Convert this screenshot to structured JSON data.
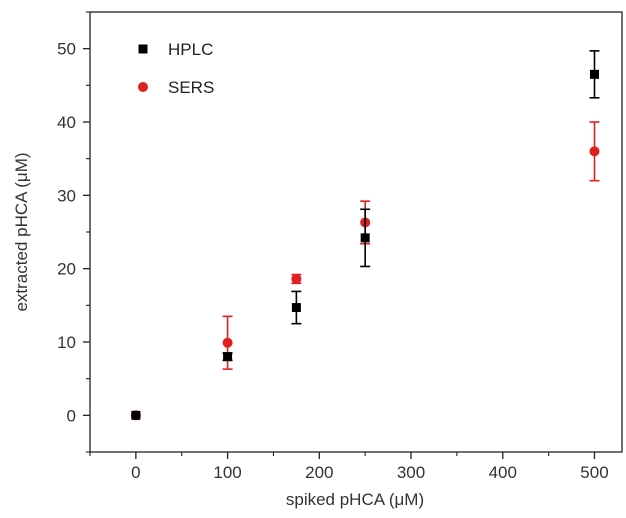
{
  "chart_data": {
    "type": "scatter",
    "xlabel": "spiked pHCA (μM)",
    "ylabel": "extracted pHCA (μM)",
    "xlim": [
      -50,
      530
    ],
    "ylim": [
      -5,
      55
    ],
    "xticks": [
      0,
      100,
      200,
      300,
      400,
      500
    ],
    "yticks": [
      0,
      10,
      20,
      30,
      40,
      50
    ],
    "grid": false,
    "legend_position": "top-left",
    "series": [
      {
        "name": "HPLC",
        "marker": "square",
        "color": "#000000",
        "x": [
          0,
          100,
          175,
          250,
          500
        ],
        "y": [
          0,
          8.0,
          14.7,
          24.2,
          46.5
        ],
        "err": [
          0.2,
          0.5,
          2.2,
          3.9,
          3.2
        ]
      },
      {
        "name": "SERS",
        "marker": "circle",
        "color": "#e02020",
        "x": [
          0,
          100,
          175,
          250,
          500
        ],
        "y": [
          0,
          9.9,
          18.6,
          26.3,
          36.0
        ],
        "err": [
          0.2,
          3.6,
          0.6,
          2.9,
          4.0
        ]
      }
    ]
  }
}
